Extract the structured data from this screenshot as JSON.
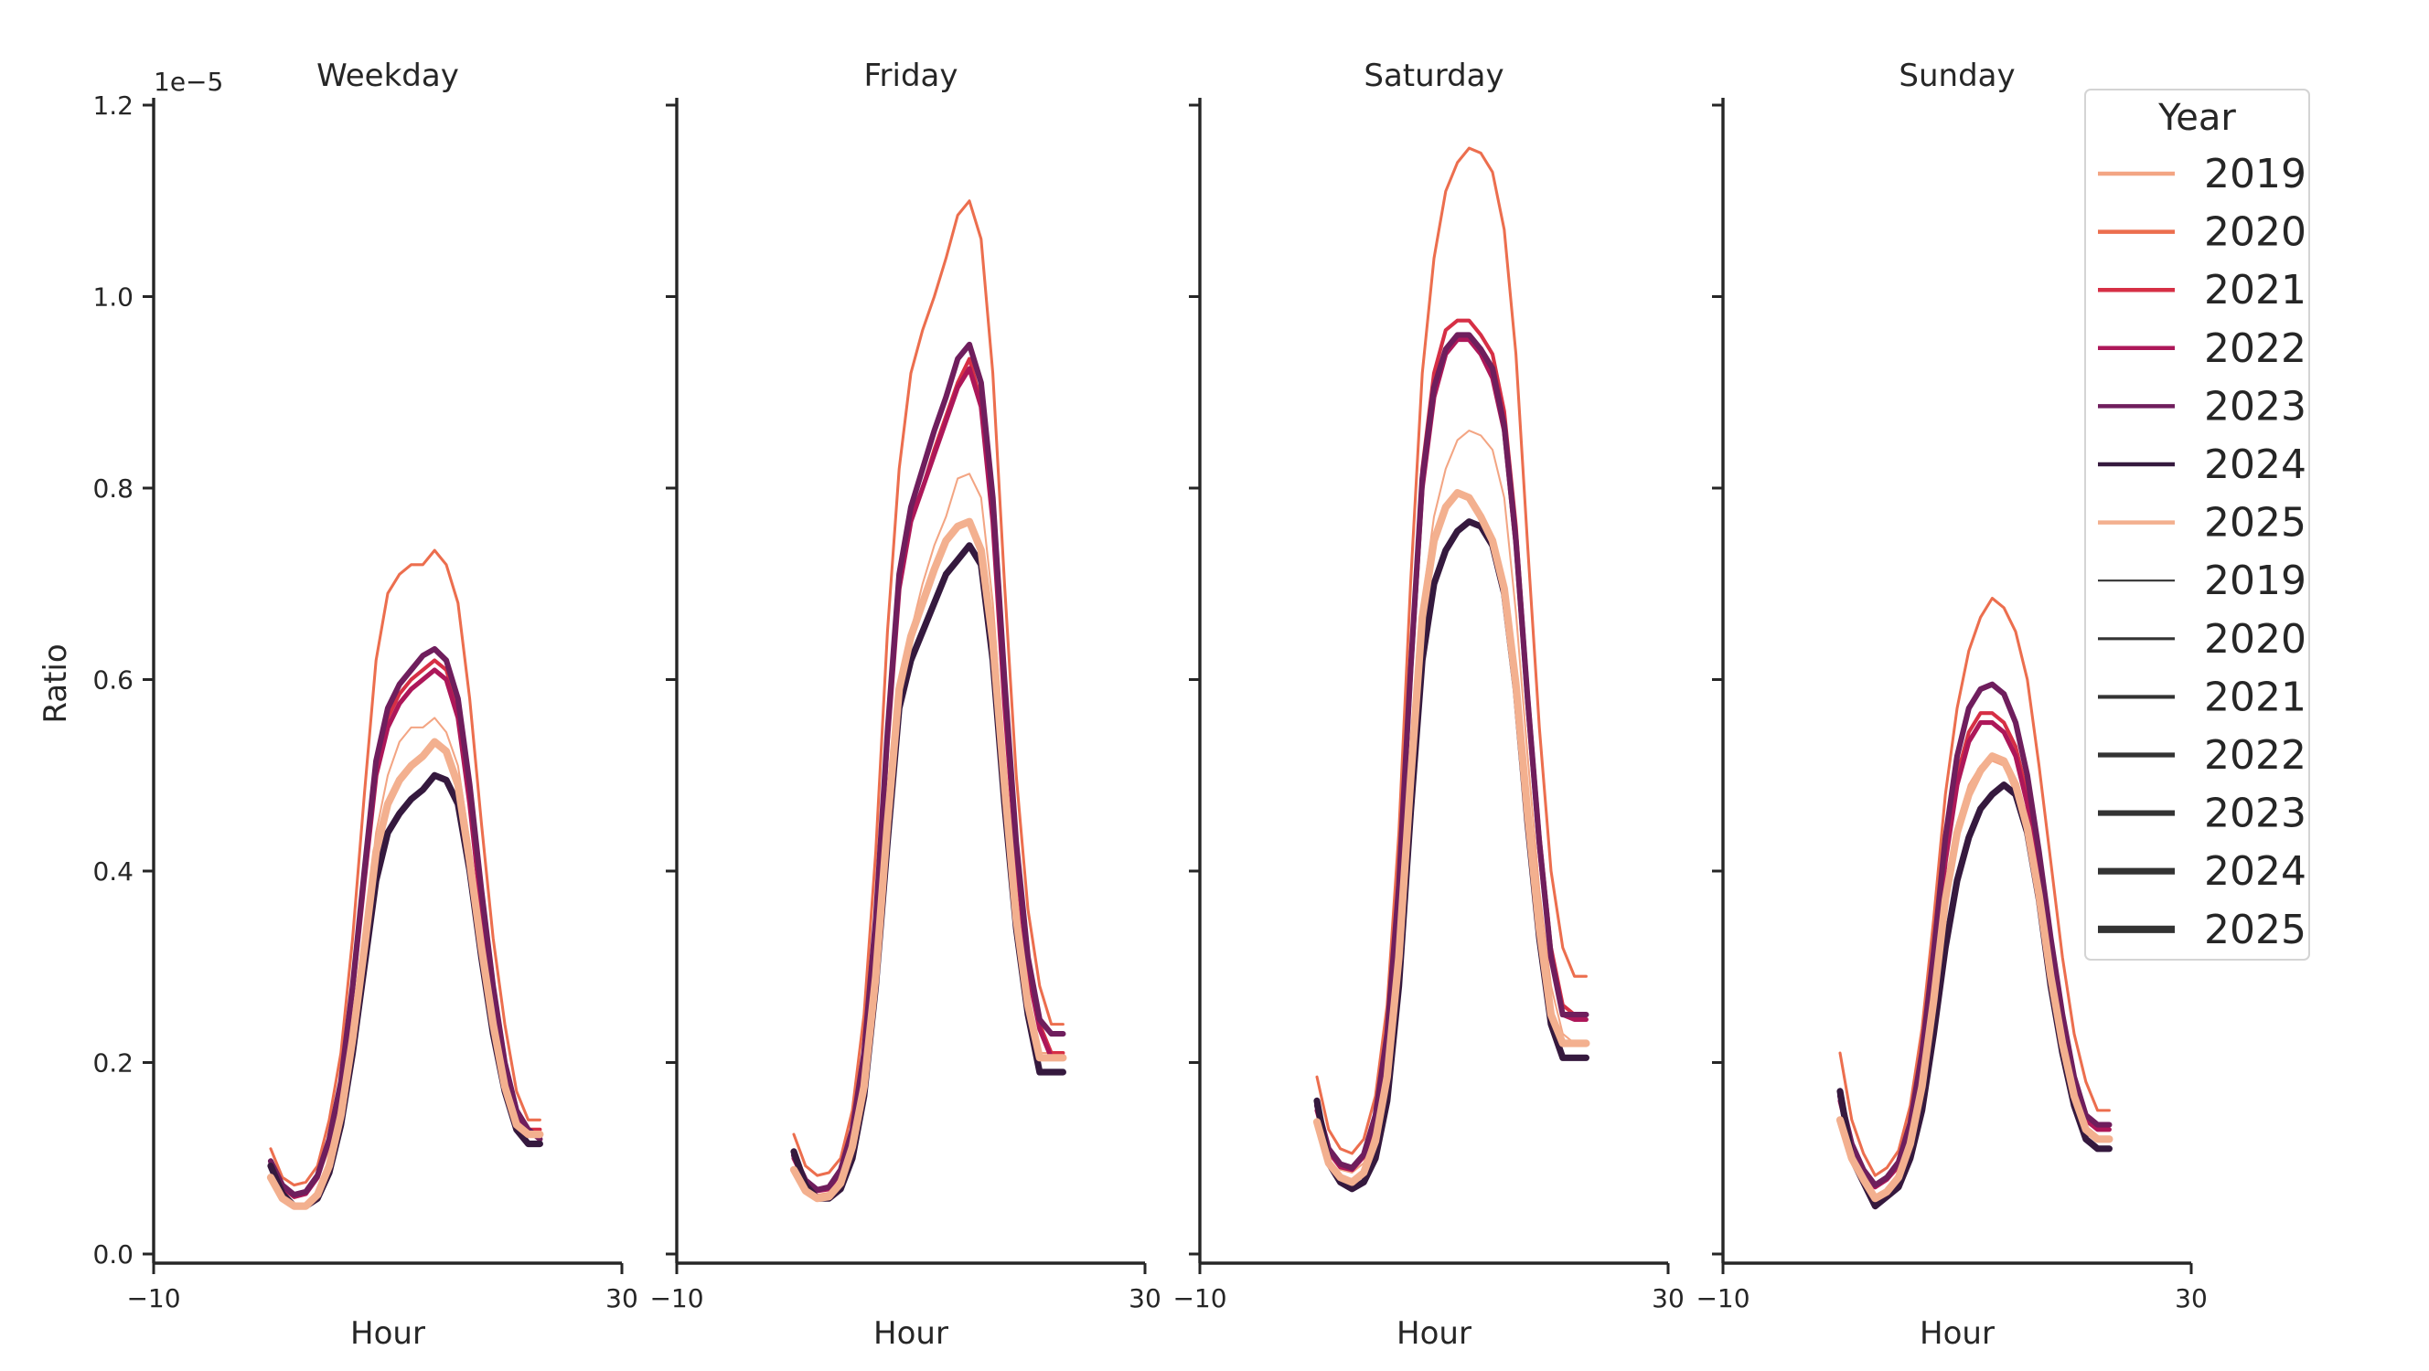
{
  "chart_data": {
    "type": "line",
    "figure": "Hourly ratio by day type and year",
    "ylabel": "Ratio",
    "xlabel": "Hour",
    "y_offset_label": "1e−5",
    "xlim": [
      -10,
      30
    ],
    "xticks": [
      -10,
      30
    ],
    "xtick_labels": [
      "−10",
      "30"
    ],
    "ylim": [
      0,
      1.2
    ],
    "yticks": [
      0.0,
      0.2,
      0.4,
      0.6,
      0.8,
      1.0,
      1.2
    ],
    "ytick_labels": [
      "0.0",
      "0.2",
      "0.4",
      "0.6",
      "0.8",
      "1.0",
      "1.2"
    ],
    "grid": false,
    "hours": [
      0,
      1,
      2,
      3,
      4,
      5,
      6,
      7,
      8,
      9,
      10,
      11,
      12,
      13,
      14,
      15,
      16,
      17,
      18,
      19,
      20,
      21,
      22,
      23
    ],
    "legend": {
      "title": "Year",
      "position": "top-right",
      "color_entries": [
        "2019",
        "2020",
        "2021",
        "2022",
        "2023",
        "2024",
        "2025"
      ],
      "width_entries": [
        "2019",
        "2020",
        "2021",
        "2022",
        "2023",
        "2024",
        "2025"
      ]
    },
    "year_styles": [
      {
        "year": "2019",
        "color": "#f3a583",
        "width": 1.0
      },
      {
        "year": "2020",
        "color": "#ec6e4e",
        "width": 1.5
      },
      {
        "year": "2021",
        "color": "#d62f45",
        "width": 2.0
      },
      {
        "year": "2022",
        "color": "#ad1759",
        "width": 2.5
      },
      {
        "year": "2023",
        "color": "#6f1e5d",
        "width": 3.0
      },
      {
        "year": "2024",
        "color": "#35193e",
        "width": 3.5
      },
      {
        "year": "2025",
        "color": "#f3b08f",
        "width": 4.0
      }
    ],
    "panels": [
      {
        "title": "Weekday",
        "series": [
          {
            "year": "2019",
            "values": [
              0.092,
              0.068,
              0.058,
              0.062,
              0.078,
              0.11,
              0.155,
              0.23,
              0.33,
              0.44,
              0.5,
              0.535,
              0.55,
              0.55,
              0.56,
              0.545,
              0.51,
              0.43,
              0.34,
              0.26,
              0.19,
              0.14,
              0.125,
              0.125
            ]
          },
          {
            "year": "2020",
            "values": [
              0.11,
              0.08,
              0.072,
              0.075,
              0.092,
              0.14,
              0.21,
              0.33,
              0.48,
              0.62,
              0.69,
              0.71,
              0.72,
              0.72,
              0.735,
              0.72,
              0.68,
              0.58,
              0.45,
              0.33,
              0.24,
              0.17,
              0.14,
              0.14
            ]
          },
          {
            "year": "2021",
            "values": [
              0.098,
              0.072,
              0.062,
              0.065,
              0.082,
              0.12,
              0.18,
              0.28,
              0.4,
              0.51,
              0.56,
              0.585,
              0.6,
              0.61,
              0.62,
              0.61,
              0.57,
              0.48,
              0.37,
              0.28,
              0.2,
              0.15,
              0.13,
              0.13
            ]
          },
          {
            "year": "2022",
            "values": [
              0.095,
              0.07,
              0.06,
              0.063,
              0.08,
              0.118,
              0.175,
              0.275,
              0.39,
              0.5,
              0.55,
              0.575,
              0.59,
              0.6,
              0.61,
              0.6,
              0.56,
              0.47,
              0.36,
              0.27,
              0.195,
              0.145,
              0.125,
              0.125
            ]
          },
          {
            "year": "2023",
            "values": [
              0.097,
              0.072,
              0.062,
              0.065,
              0.082,
              0.12,
              0.18,
              0.28,
              0.4,
              0.515,
              0.57,
              0.595,
              0.61,
              0.625,
              0.632,
              0.62,
              0.58,
              0.49,
              0.38,
              0.28,
              0.2,
              0.15,
              0.13,
              0.12
            ]
          },
          {
            "year": "2024",
            "values": [
              0.092,
              0.063,
              0.05,
              0.05,
              0.058,
              0.085,
              0.135,
              0.21,
              0.3,
              0.39,
              0.44,
              0.46,
              0.475,
              0.485,
              0.5,
              0.495,
              0.47,
              0.4,
              0.31,
              0.23,
              0.17,
              0.13,
              0.115,
              0.115
            ]
          },
          {
            "year": "2025",
            "values": [
              0.08,
              0.058,
              0.05,
              0.05,
              0.062,
              0.092,
              0.145,
              0.225,
              0.32,
              0.42,
              0.47,
              0.495,
              0.51,
              0.52,
              0.535,
              0.525,
              0.49,
              0.41,
              0.32,
              0.24,
              0.175,
              0.135,
              0.125,
              0.125
            ]
          }
        ]
      },
      {
        "title": "Friday",
        "series": [
          {
            "year": "2019",
            "values": [
              0.09,
              0.07,
              0.062,
              0.064,
              0.078,
              0.115,
              0.17,
              0.27,
              0.41,
              0.56,
              0.65,
              0.7,
              0.74,
              0.77,
              0.81,
              0.815,
              0.79,
              0.68,
              0.52,
              0.38,
              0.27,
              0.21,
              0.21,
              0.21
            ]
          },
          {
            "year": "2020",
            "values": [
              0.125,
              0.092,
              0.082,
              0.085,
              0.1,
              0.15,
              0.25,
              0.42,
              0.65,
              0.82,
              0.92,
              0.965,
              1.0,
              1.04,
              1.085,
              1.1,
              1.06,
              0.92,
              0.7,
              0.5,
              0.36,
              0.28,
              0.24,
              0.24
            ]
          },
          {
            "year": "2021",
            "values": [
              0.105,
              0.078,
              0.068,
              0.07,
              0.088,
              0.13,
              0.21,
              0.35,
              0.54,
              0.7,
              0.77,
              0.8,
              0.84,
              0.875,
              0.91,
              0.935,
              0.89,
              0.77,
              0.58,
              0.42,
              0.3,
              0.24,
              0.21,
              0.21
            ]
          },
          {
            "year": "2022",
            "values": [
              0.1,
              0.075,
              0.066,
              0.068,
              0.086,
              0.128,
              0.205,
              0.345,
              0.535,
              0.695,
              0.765,
              0.8,
              0.835,
              0.87,
              0.905,
              0.925,
              0.885,
              0.765,
              0.575,
              0.415,
              0.295,
              0.235,
              0.205,
              0.205
            ]
          },
          {
            "year": "2023",
            "values": [
              0.103,
              0.077,
              0.067,
              0.07,
              0.088,
              0.13,
              0.21,
              0.35,
              0.545,
              0.71,
              0.78,
              0.82,
              0.86,
              0.895,
              0.935,
              0.95,
              0.91,
              0.79,
              0.6,
              0.43,
              0.31,
              0.245,
              0.23,
              0.23
            ]
          },
          {
            "year": "2024",
            "values": [
              0.107,
              0.072,
              0.058,
              0.058,
              0.068,
              0.1,
              0.165,
              0.28,
              0.43,
              0.57,
              0.62,
              0.65,
              0.68,
              0.71,
              0.725,
              0.74,
              0.72,
              0.62,
              0.47,
              0.34,
              0.25,
              0.19,
              0.19,
              0.19
            ]
          },
          {
            "year": "2025",
            "values": [
              0.088,
              0.066,
              0.058,
              0.06,
              0.074,
              0.112,
              0.175,
              0.29,
              0.45,
              0.59,
              0.645,
              0.68,
              0.715,
              0.745,
              0.76,
              0.765,
              0.735,
              0.64,
              0.49,
              0.35,
              0.26,
              0.205,
              0.205,
              0.205
            ]
          }
        ]
      },
      {
        "title": "Saturday",
        "series": [
          {
            "year": "2019",
            "values": [
              0.15,
              0.105,
              0.088,
              0.085,
              0.095,
              0.13,
              0.2,
              0.33,
              0.52,
              0.68,
              0.77,
              0.82,
              0.85,
              0.86,
              0.855,
              0.84,
              0.79,
              0.67,
              0.52,
              0.38,
              0.28,
              0.23,
              0.22,
              0.22
            ]
          },
          {
            "year": "2020",
            "values": [
              0.185,
              0.13,
              0.11,
              0.105,
              0.12,
              0.165,
              0.26,
              0.44,
              0.7,
              0.92,
              1.04,
              1.11,
              1.14,
              1.155,
              1.15,
              1.13,
              1.07,
              0.94,
              0.74,
              0.55,
              0.4,
              0.32,
              0.29,
              0.29
            ]
          },
          {
            "year": "2021",
            "values": [
              0.155,
              0.11,
              0.094,
              0.09,
              0.104,
              0.145,
              0.23,
              0.39,
              0.62,
              0.82,
              0.92,
              0.965,
              0.975,
              0.975,
              0.96,
              0.94,
              0.88,
              0.76,
              0.59,
              0.44,
              0.32,
              0.26,
              0.25,
              0.25
            ]
          },
          {
            "year": "2022",
            "values": [
              0.15,
              0.107,
              0.091,
              0.088,
              0.102,
              0.142,
              0.225,
              0.38,
              0.605,
              0.8,
              0.895,
              0.94,
              0.955,
              0.955,
              0.94,
              0.915,
              0.86,
              0.74,
              0.575,
              0.425,
              0.31,
              0.25,
              0.245,
              0.245
            ]
          },
          {
            "year": "2023",
            "values": [
              0.155,
              0.11,
              0.094,
              0.09,
              0.104,
              0.145,
              0.23,
              0.385,
              0.61,
              0.81,
              0.905,
              0.945,
              0.96,
              0.96,
              0.945,
              0.925,
              0.865,
              0.745,
              0.58,
              0.43,
              0.31,
              0.25,
              0.25,
              0.25
            ]
          },
          {
            "year": "2024",
            "values": [
              0.16,
              0.095,
              0.075,
              0.068,
              0.075,
              0.1,
              0.16,
              0.28,
              0.46,
              0.62,
              0.7,
              0.735,
              0.755,
              0.765,
              0.76,
              0.74,
              0.69,
              0.59,
              0.45,
              0.33,
              0.24,
              0.205,
              0.205,
              0.205
            ]
          },
          {
            "year": "2025",
            "values": [
              0.138,
              0.095,
              0.08,
              0.075,
              0.085,
              0.118,
              0.185,
              0.31,
              0.495,
              0.665,
              0.745,
              0.78,
              0.795,
              0.79,
              0.77,
              0.745,
              0.695,
              0.595,
              0.46,
              0.34,
              0.25,
              0.22,
              0.22,
              0.22
            ]
          }
        ]
      },
      {
        "title": "Sunday",
        "series": [
          {
            "year": "2019",
            "values": [
              0.16,
              0.11,
              0.085,
              0.07,
              0.078,
              0.092,
              0.13,
              0.19,
              0.28,
              0.38,
              0.45,
              0.49,
              0.51,
              0.515,
              0.51,
              0.48,
              0.43,
              0.36,
              0.28,
              0.21,
              0.16,
              0.13,
              0.12,
              0.12
            ]
          },
          {
            "year": "2020",
            "values": [
              0.21,
              0.14,
              0.105,
              0.082,
              0.09,
              0.108,
              0.155,
              0.235,
              0.35,
              0.48,
              0.57,
              0.63,
              0.665,
              0.685,
              0.675,
              0.65,
              0.6,
              0.51,
              0.41,
              0.31,
              0.23,
              0.18,
              0.15,
              0.15
            ]
          },
          {
            "year": "2021",
            "values": [
              0.165,
              0.115,
              0.088,
              0.072,
              0.08,
              0.095,
              0.135,
              0.205,
              0.305,
              0.42,
              0.5,
              0.545,
              0.565,
              0.565,
              0.555,
              0.53,
              0.48,
              0.41,
              0.32,
              0.24,
              0.18,
              0.14,
              0.13,
              0.13
            ]
          },
          {
            "year": "2022",
            "values": [
              0.16,
              0.11,
              0.085,
              0.07,
              0.078,
              0.092,
              0.13,
              0.2,
              0.3,
              0.41,
              0.49,
              0.535,
              0.555,
              0.555,
              0.545,
              0.52,
              0.47,
              0.4,
              0.31,
              0.235,
              0.175,
              0.14,
              0.13,
              0.13
            ]
          },
          {
            "year": "2023",
            "values": [
              0.165,
              0.115,
              0.088,
              0.072,
              0.08,
              0.096,
              0.137,
              0.21,
              0.315,
              0.435,
              0.52,
              0.57,
              0.59,
              0.595,
              0.585,
              0.555,
              0.5,
              0.42,
              0.33,
              0.25,
              0.185,
              0.145,
              0.135,
              0.135
            ]
          },
          {
            "year": "2024",
            "values": [
              0.17,
              0.1,
              0.075,
              0.05,
              0.06,
              0.07,
              0.1,
              0.15,
              0.23,
              0.32,
              0.39,
              0.435,
              0.465,
              0.48,
              0.49,
              0.48,
              0.44,
              0.37,
              0.28,
              0.21,
              0.155,
              0.12,
              0.11,
              0.11
            ]
          },
          {
            "year": "2025",
            "values": [
              0.14,
              0.1,
              0.078,
              0.058,
              0.065,
              0.08,
              0.115,
              0.175,
              0.265,
              0.37,
              0.44,
              0.48,
              0.505,
              0.52,
              0.515,
              0.49,
              0.445,
              0.375,
              0.29,
              0.22,
              0.165,
              0.13,
              0.12,
              0.12
            ]
          }
        ]
      }
    ]
  }
}
